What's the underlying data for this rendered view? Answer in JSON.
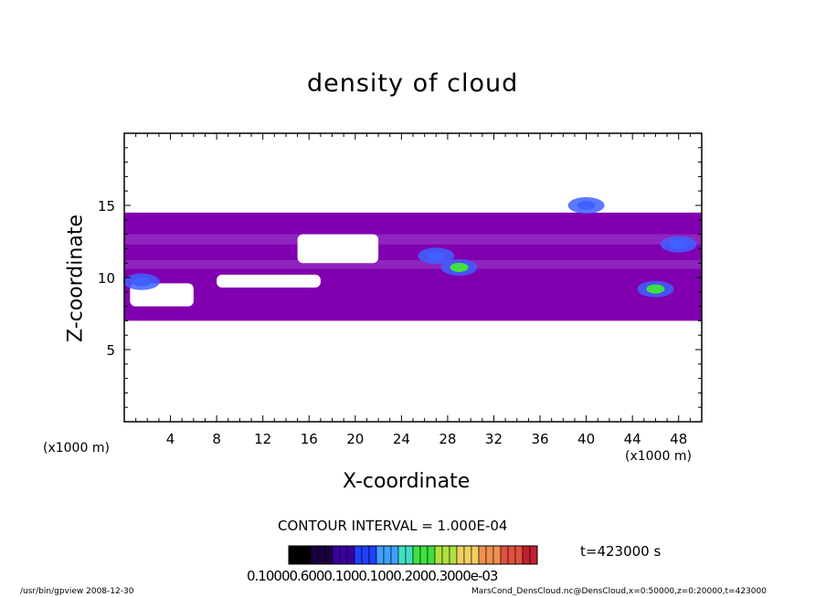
{
  "chart_data": {
    "type": "heatmap",
    "title": "density of cloud",
    "xlabel": "X-coordinate",
    "ylabel": "Z-coordinate",
    "x_unit": "(x1000 m)",
    "y_unit": "(x1000 m)",
    "xlim": [
      0,
      50
    ],
    "ylim": [
      0,
      20
    ],
    "x_ticks": [
      4,
      8,
      12,
      16,
      20,
      24,
      28,
      32,
      36,
      40,
      44,
      48
    ],
    "y_ticks": [
      5,
      10,
      15
    ],
    "contour_interval": "CONTOUR INTERVAL = 1.000E-04",
    "time_label": "t=423000 s",
    "colorbar_labels": "0.10000.6000.1000.1000.2000.3000e-03",
    "colors": {
      "low": "#8000b0",
      "mid": "#4060ff",
      "high": "#40e040"
    },
    "cloud_bands": [
      {
        "x": [
          0,
          50
        ],
        "z": [
          7,
          14.5
        ],
        "level": "low"
      }
    ],
    "clear_regions": [
      {
        "x": [
          15,
          22
        ],
        "z": [
          11,
          13
        ],
        "label": "clear"
      },
      {
        "x": [
          8,
          17
        ],
        "z": [
          9.3,
          10.2
        ],
        "label": "clear"
      },
      {
        "x": [
          0.5,
          6
        ],
        "z": [
          8,
          9.6
        ],
        "label": "clear"
      }
    ],
    "high_density_cores": [
      {
        "x": 1.5,
        "z": 9.7,
        "level": "mid"
      },
      {
        "x": 29,
        "z": 10.7,
        "level": "high"
      },
      {
        "x": 27,
        "z": 11.5,
        "level": "mid"
      },
      {
        "x": 46,
        "z": 9.2,
        "level": "high"
      },
      {
        "x": 40,
        "z": 15,
        "level": "mid"
      },
      {
        "x": 48,
        "z": 12.3,
        "level": "mid"
      }
    ]
  },
  "footer": {
    "left": "/usr/bin/gpview   2008-12-30",
    "right": "MarsCond_DensCloud.nc@DensCloud,x=0:50000,z=0:20000,t=423000"
  }
}
